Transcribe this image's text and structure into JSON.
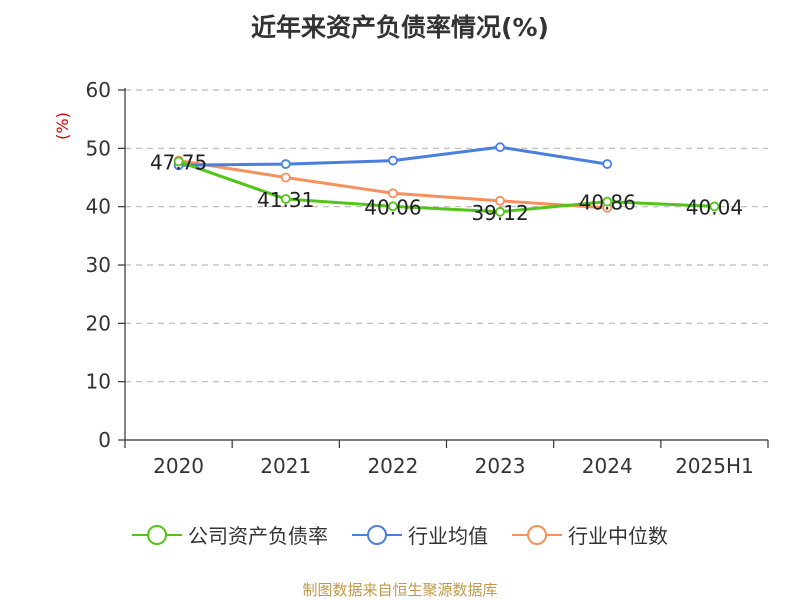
{
  "title": "近年来资产负债率情况(%)",
  "source_text": "制图数据来自恒生聚源数据库",
  "chart_data": {
    "type": "line",
    "title": "近年来资产负债率情况(%)",
    "ylabel": "(%)",
    "xlabel": "",
    "categories": [
      "2020",
      "2021",
      "2022",
      "2023",
      "2024",
      "2025H1"
    ],
    "ylim": [
      0,
      60
    ],
    "yticks": [
      0,
      10,
      20,
      30,
      40,
      50,
      60
    ],
    "grid": "horizontal-dashed",
    "legend_position": "bottom",
    "series": [
      {
        "name": "公司资产负债率",
        "color": "#52c41a",
        "values": [
          47.75,
          41.31,
          40.06,
          39.12,
          40.86,
          40.04
        ],
        "labels": [
          "47.75",
          "41.31",
          "40.06",
          "39.12",
          "40.86",
          "40.04"
        ]
      },
      {
        "name": "行业均值",
        "color": "#4a7fe0",
        "values": [
          47.1,
          47.3,
          47.9,
          50.2,
          47.3,
          null
        ]
      },
      {
        "name": "行业中位数",
        "color": "#f7915c",
        "values": [
          47.9,
          45.0,
          42.3,
          41.0,
          39.8,
          null
        ]
      }
    ]
  }
}
